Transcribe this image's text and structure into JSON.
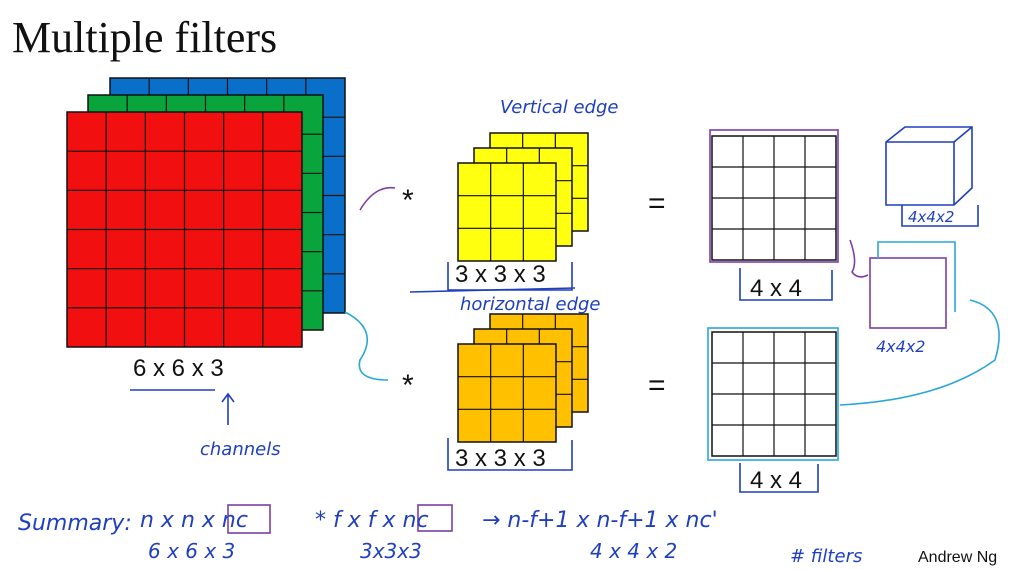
{
  "title": "Multiple filters",
  "input": {
    "label": "6 x 6 x 3",
    "note": "channels"
  },
  "filters": [
    {
      "note": "Vertical edge",
      "operator": "*",
      "label": "3 x 3 x 3",
      "equals": "=",
      "output": "4 x 4"
    },
    {
      "note": "horizontal edge",
      "operator": "*",
      "label": "3 x 3 x 3",
      "equals": "=",
      "output": "4 x 4"
    }
  ],
  "stacked_output": [
    "4x4x2",
    "4x4x2"
  ],
  "summary": {
    "label": "Summary:",
    "terms": [
      {
        "expr": "n x n x nc",
        "example": "6 x 6 x 3"
      },
      {
        "expr": "* f x f x nc",
        "example": "3x3x3"
      },
      {
        "expr": "→ n-f+1 x n-f+1 x nc'",
        "example": "4 x 4 x 2"
      }
    ],
    "note": "# filters"
  },
  "footer": "Andrew Ng"
}
